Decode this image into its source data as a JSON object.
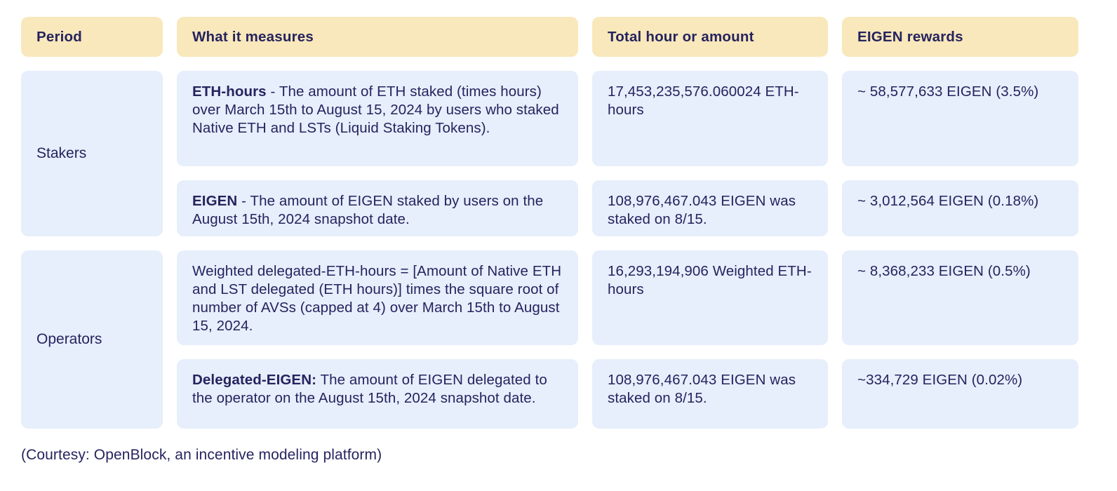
{
  "colors": {
    "page_bg": "#ffffff",
    "header_cell_bg": "#f8e8bb",
    "body_cell_bg": "#e6effb",
    "text": "#26235f"
  },
  "table": {
    "headers": [
      {
        "label": "Period"
      },
      {
        "label": "What it measures"
      },
      {
        "label": "Total hour or amount"
      },
      {
        "label": "EIGEN rewards"
      }
    ],
    "groups": [
      {
        "period": "Stakers",
        "rows": [
          {
            "measure_bold": "ETH-hours",
            "measure_rest": " -  The amount of ETH staked (times hours) over March 15th to August 15, 2024  by users who staked Native ETH and LSTs (Liquid Staking Tokens).",
            "total": "17,453,235,576.060024 ETH-hours",
            "rewards": "~ 58,577,633 EIGEN (3.5%)"
          },
          {
            "measure_bold": "EIGEN",
            "measure_rest": " - The amount of EIGEN staked by users on the August 15th, 2024 snapshot date.",
            "total": "108,976,467.043 EIGEN was staked on 8/15.",
            "rewards": "~ 3,012,564 EIGEN  (0.18%)"
          }
        ]
      },
      {
        "period": "Operators",
        "rows": [
          {
            "measure_bold": "",
            "measure_rest": "Weighted delegated-ETH-hours = [Amount of Native ETH and LST delegated (ETH hours)] times the square root of number of  AVSs (capped at 4) over March 15th to August 15, 2024.",
            "total": "16,293,194,906 Weighted ETH-hours",
            "rewards": "~ 8,368,233 EIGEN (0.5%)"
          },
          {
            "measure_bold": "Delegated-EIGEN:",
            "measure_rest": " The amount of EIGEN delegated to the operator on the August 15th, 2024 snapshot date.",
            "total": "108,976,467.043 EIGEN was staked on 8/15.",
            "rewards": "~334,729 EIGEN (0.02%)"
          }
        ]
      }
    ]
  },
  "footer": {
    "caption": "(Courtesy: OpenBlock, an incentive modeling platform)"
  }
}
